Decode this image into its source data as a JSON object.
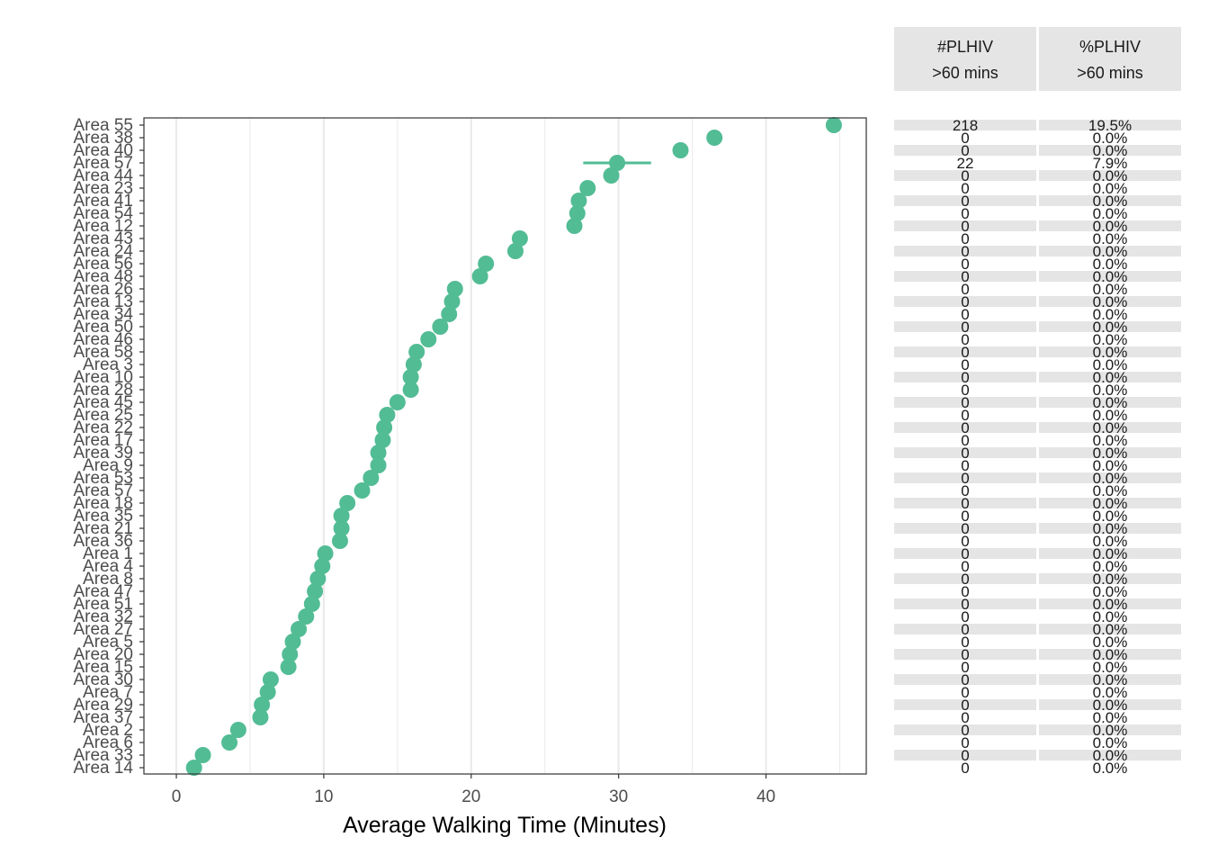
{
  "chart_data": {
    "type": "scatter",
    "xlabel": "Average Walking Time (Minutes)",
    "xlim": [
      -2.2,
      46.8
    ],
    "xticks": [
      0,
      10,
      20,
      30,
      40
    ],
    "grid": true,
    "point_color": "#52bc95",
    "points": [
      {
        "label": "Area 55",
        "x": 44.6
      },
      {
        "label": "Area 38",
        "x": 36.5
      },
      {
        "label": "Area 40",
        "x": 34.2
      },
      {
        "label": "Area 57",
        "x": 29.9,
        "xmin": 27.6,
        "xmax": 32.2
      },
      {
        "label": "Area 44",
        "x": 29.5
      },
      {
        "label": "Area 23",
        "x": 27.9
      },
      {
        "label": "Area 41",
        "x": 27.3
      },
      {
        "label": "Area 54",
        "x": 27.2
      },
      {
        "label": "Area 12",
        "x": 27.0
      },
      {
        "label": "Area 43",
        "x": 23.3
      },
      {
        "label": "Area 24",
        "x": 23.0
      },
      {
        "label": "Area 56",
        "x": 21.0
      },
      {
        "label": "Area 48",
        "x": 20.6
      },
      {
        "label": "Area 26",
        "x": 18.9
      },
      {
        "label": "Area 13",
        "x": 18.7
      },
      {
        "label": "Area 34",
        "x": 18.5
      },
      {
        "label": "Area 50",
        "x": 17.9
      },
      {
        "label": "Area 46",
        "x": 17.1
      },
      {
        "label": "Area 58",
        "x": 16.3
      },
      {
        "label": "Area 3",
        "x": 16.1
      },
      {
        "label": "Area 10",
        "x": 15.9
      },
      {
        "label": "Area 28",
        "x": 15.9
      },
      {
        "label": "Area 45",
        "x": 15.0
      },
      {
        "label": "Area 25",
        "x": 14.3
      },
      {
        "label": "Area 22",
        "x": 14.1
      },
      {
        "label": "Area 17",
        "x": 14.0
      },
      {
        "label": "Area 39",
        "x": 13.7
      },
      {
        "label": "Area 9",
        "x": 13.7
      },
      {
        "label": "Area 53",
        "x": 13.2
      },
      {
        "label": "Area 57",
        "x": 12.6
      },
      {
        "label": "Area 18",
        "x": 11.6
      },
      {
        "label": "Area 35",
        "x": 11.2
      },
      {
        "label": "Area 21",
        "x": 11.2
      },
      {
        "label": "Area 36",
        "x": 11.1
      },
      {
        "label": "Area 1",
        "x": 10.1
      },
      {
        "label": "Area 4",
        "x": 9.9
      },
      {
        "label": "Area 8",
        "x": 9.6
      },
      {
        "label": "Area 47",
        "x": 9.4
      },
      {
        "label": "Area 51",
        "x": 9.2
      },
      {
        "label": "Area 32",
        "x": 8.8
      },
      {
        "label": "Area 27",
        "x": 8.3
      },
      {
        "label": "Area 5",
        "x": 7.9
      },
      {
        "label": "Area 20",
        "x": 7.7
      },
      {
        "label": "Area 15",
        "x": 7.6
      },
      {
        "label": "Area 30",
        "x": 6.4
      },
      {
        "label": "Area 7",
        "x": 6.2
      },
      {
        "label": "Area 29",
        "x": 5.8
      },
      {
        "label": "Area 37",
        "x": 5.7
      },
      {
        "label": "Area 2",
        "x": 4.2
      },
      {
        "label": "Area 6",
        "x": 3.6
      },
      {
        "label": "Area 33",
        "x": 1.8
      },
      {
        "label": "Area 14",
        "x": 1.2
      }
    ]
  },
  "table": {
    "headers": [
      {
        "line1": "#PLHIV",
        "line2": ">60 mins"
      },
      {
        "line1": "%PLHIV",
        "line2": ">60 mins"
      }
    ],
    "count_col": [
      "218",
      "0",
      "0",
      "22",
      "0",
      "0",
      "0",
      "0",
      "0",
      "0",
      "0",
      "0",
      "0",
      "0",
      "0",
      "0",
      "0",
      "0",
      "0",
      "0",
      "0",
      "0",
      "0",
      "0",
      "0",
      "0",
      "0",
      "0",
      "0",
      "0",
      "0",
      "0",
      "0",
      "0",
      "0",
      "0",
      "0",
      "0",
      "0",
      "0",
      "0",
      "0",
      "0",
      "0",
      "0",
      "0",
      "0",
      "0",
      "0",
      "0",
      "0",
      "0"
    ],
    "pct_col": [
      "19.5%",
      "0.0%",
      "0.0%",
      "7.9%",
      "0.0%",
      "0.0%",
      "0.0%",
      "0.0%",
      "0.0%",
      "0.0%",
      "0.0%",
      "0.0%",
      "0.0%",
      "0.0%",
      "0.0%",
      "0.0%",
      "0.0%",
      "0.0%",
      "0.0%",
      "0.0%",
      "0.0%",
      "0.0%",
      "0.0%",
      "0.0%",
      "0.0%",
      "0.0%",
      "0.0%",
      "0.0%",
      "0.0%",
      "0.0%",
      "0.0%",
      "0.0%",
      "0.0%",
      "0.0%",
      "0.0%",
      "0.0%",
      "0.0%",
      "0.0%",
      "0.0%",
      "0.0%",
      "0.0%",
      "0.0%",
      "0.0%",
      "0.0%",
      "0.0%",
      "0.0%",
      "0.0%",
      "0.0%",
      "0.0%",
      "0.0%",
      "0.0%",
      "0.0%"
    ]
  }
}
